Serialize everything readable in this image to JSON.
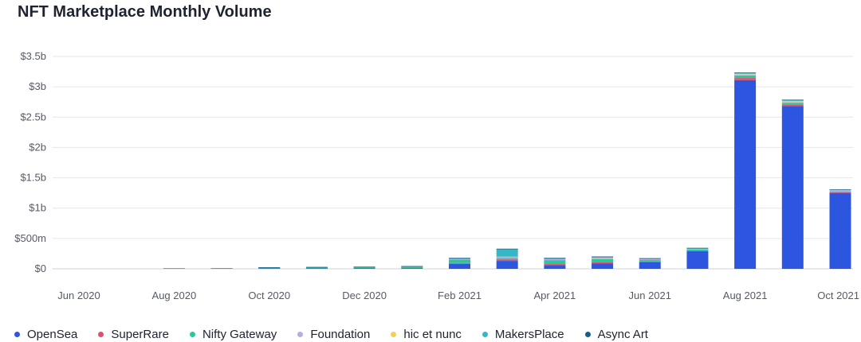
{
  "chart_data": {
    "type": "bar",
    "stacked": true,
    "title": "NFT Marketplace Monthly Volume",
    "xlabel": "",
    "ylabel": "",
    "ylim": [
      0,
      3500000000
    ],
    "y_ticks": [
      {
        "value": 0,
        "label": "$0"
      },
      {
        "value": 500000000,
        "label": "$500m"
      },
      {
        "value": 1000000000,
        "label": "$1b"
      },
      {
        "value": 1500000000,
        "label": "$1.5b"
      },
      {
        "value": 2000000000,
        "label": "$2b"
      },
      {
        "value": 2500000000,
        "label": "$2.5b"
      },
      {
        "value": 3000000000,
        "label": "$3b"
      },
      {
        "value": 3500000000,
        "label": "$3.5b"
      }
    ],
    "categories": [
      "Jun 2020",
      "Jul 2020",
      "Aug 2020",
      "Sep 2020",
      "Oct 2020",
      "Nov 2020",
      "Dec 2020",
      "Jan 2021",
      "Feb 2021",
      "Mar 2021",
      "Apr 2021",
      "May 2021",
      "Jun 2021",
      "Jul 2021",
      "Aug 2021",
      "Sep 2021",
      "Oct 2021"
    ],
    "x_tick_labels": [
      "Jun 2020",
      "",
      "Aug 2020",
      "",
      "Oct 2020",
      "",
      "Dec 2020",
      "",
      "Feb 2021",
      "",
      "Apr 2021",
      "",
      "Jun 2021",
      "",
      "Aug 2021",
      "",
      "Oct 2021"
    ],
    "grid": true,
    "legend_position": "bottom",
    "series": [
      {
        "name": "OpenSea",
        "color": "#2c55e0",
        "values": [
          0,
          0,
          0,
          1000000,
          3000000,
          5000000,
          8000000,
          8000000,
          80000000,
          130000000,
          60000000,
          90000000,
          110000000,
          290000000,
          3110000000,
          2680000000,
          1250000000
        ]
      },
      {
        "name": "SuperRare",
        "color": "#e0506e",
        "values": [
          0,
          0,
          1000000,
          2000000,
          10000000,
          5000000,
          6000000,
          7000000,
          15000000,
          25000000,
          18000000,
          15000000,
          10000000,
          10000000,
          35000000,
          30000000,
          10000000
        ]
      },
      {
        "name": "Nifty Gateway",
        "color": "#27c99a",
        "values": [
          0,
          0,
          0,
          0,
          2000000,
          6000000,
          8000000,
          15000000,
          55000000,
          20000000,
          65000000,
          55000000,
          25000000,
          15000000,
          40000000,
          25000000,
          15000000
        ]
      },
      {
        "name": "Foundation",
        "color": "#b3aee6",
        "values": [
          0,
          0,
          0,
          0,
          0,
          0,
          0,
          0,
          10000000,
          25000000,
          15000000,
          20000000,
          12000000,
          12000000,
          10000000,
          12000000,
          10000000
        ]
      },
      {
        "name": "hic et nunc",
        "color": "#f2cf5b",
        "values": [
          0,
          0,
          0,
          0,
          0,
          0,
          0,
          0,
          0,
          1000000,
          2000000,
          3000000,
          3000000,
          3000000,
          20000000,
          20000000,
          8000000
        ]
      },
      {
        "name": "MakersPlace",
        "color": "#35b7c9",
        "values": [
          0,
          0,
          0,
          1000000,
          1000000,
          5000000,
          3000000,
          5000000,
          10000000,
          120000000,
          10000000,
          10000000,
          5000000,
          5000000,
          10000000,
          10000000,
          5000000
        ]
      },
      {
        "name": "Async Art",
        "color": "#155f8a",
        "values": [
          0,
          0,
          0,
          0,
          1000000,
          1000000,
          1000000,
          2000000,
          3000000,
          5000000,
          3000000,
          3000000,
          2000000,
          2000000,
          5000000,
          5000000,
          3000000
        ]
      }
    ]
  }
}
